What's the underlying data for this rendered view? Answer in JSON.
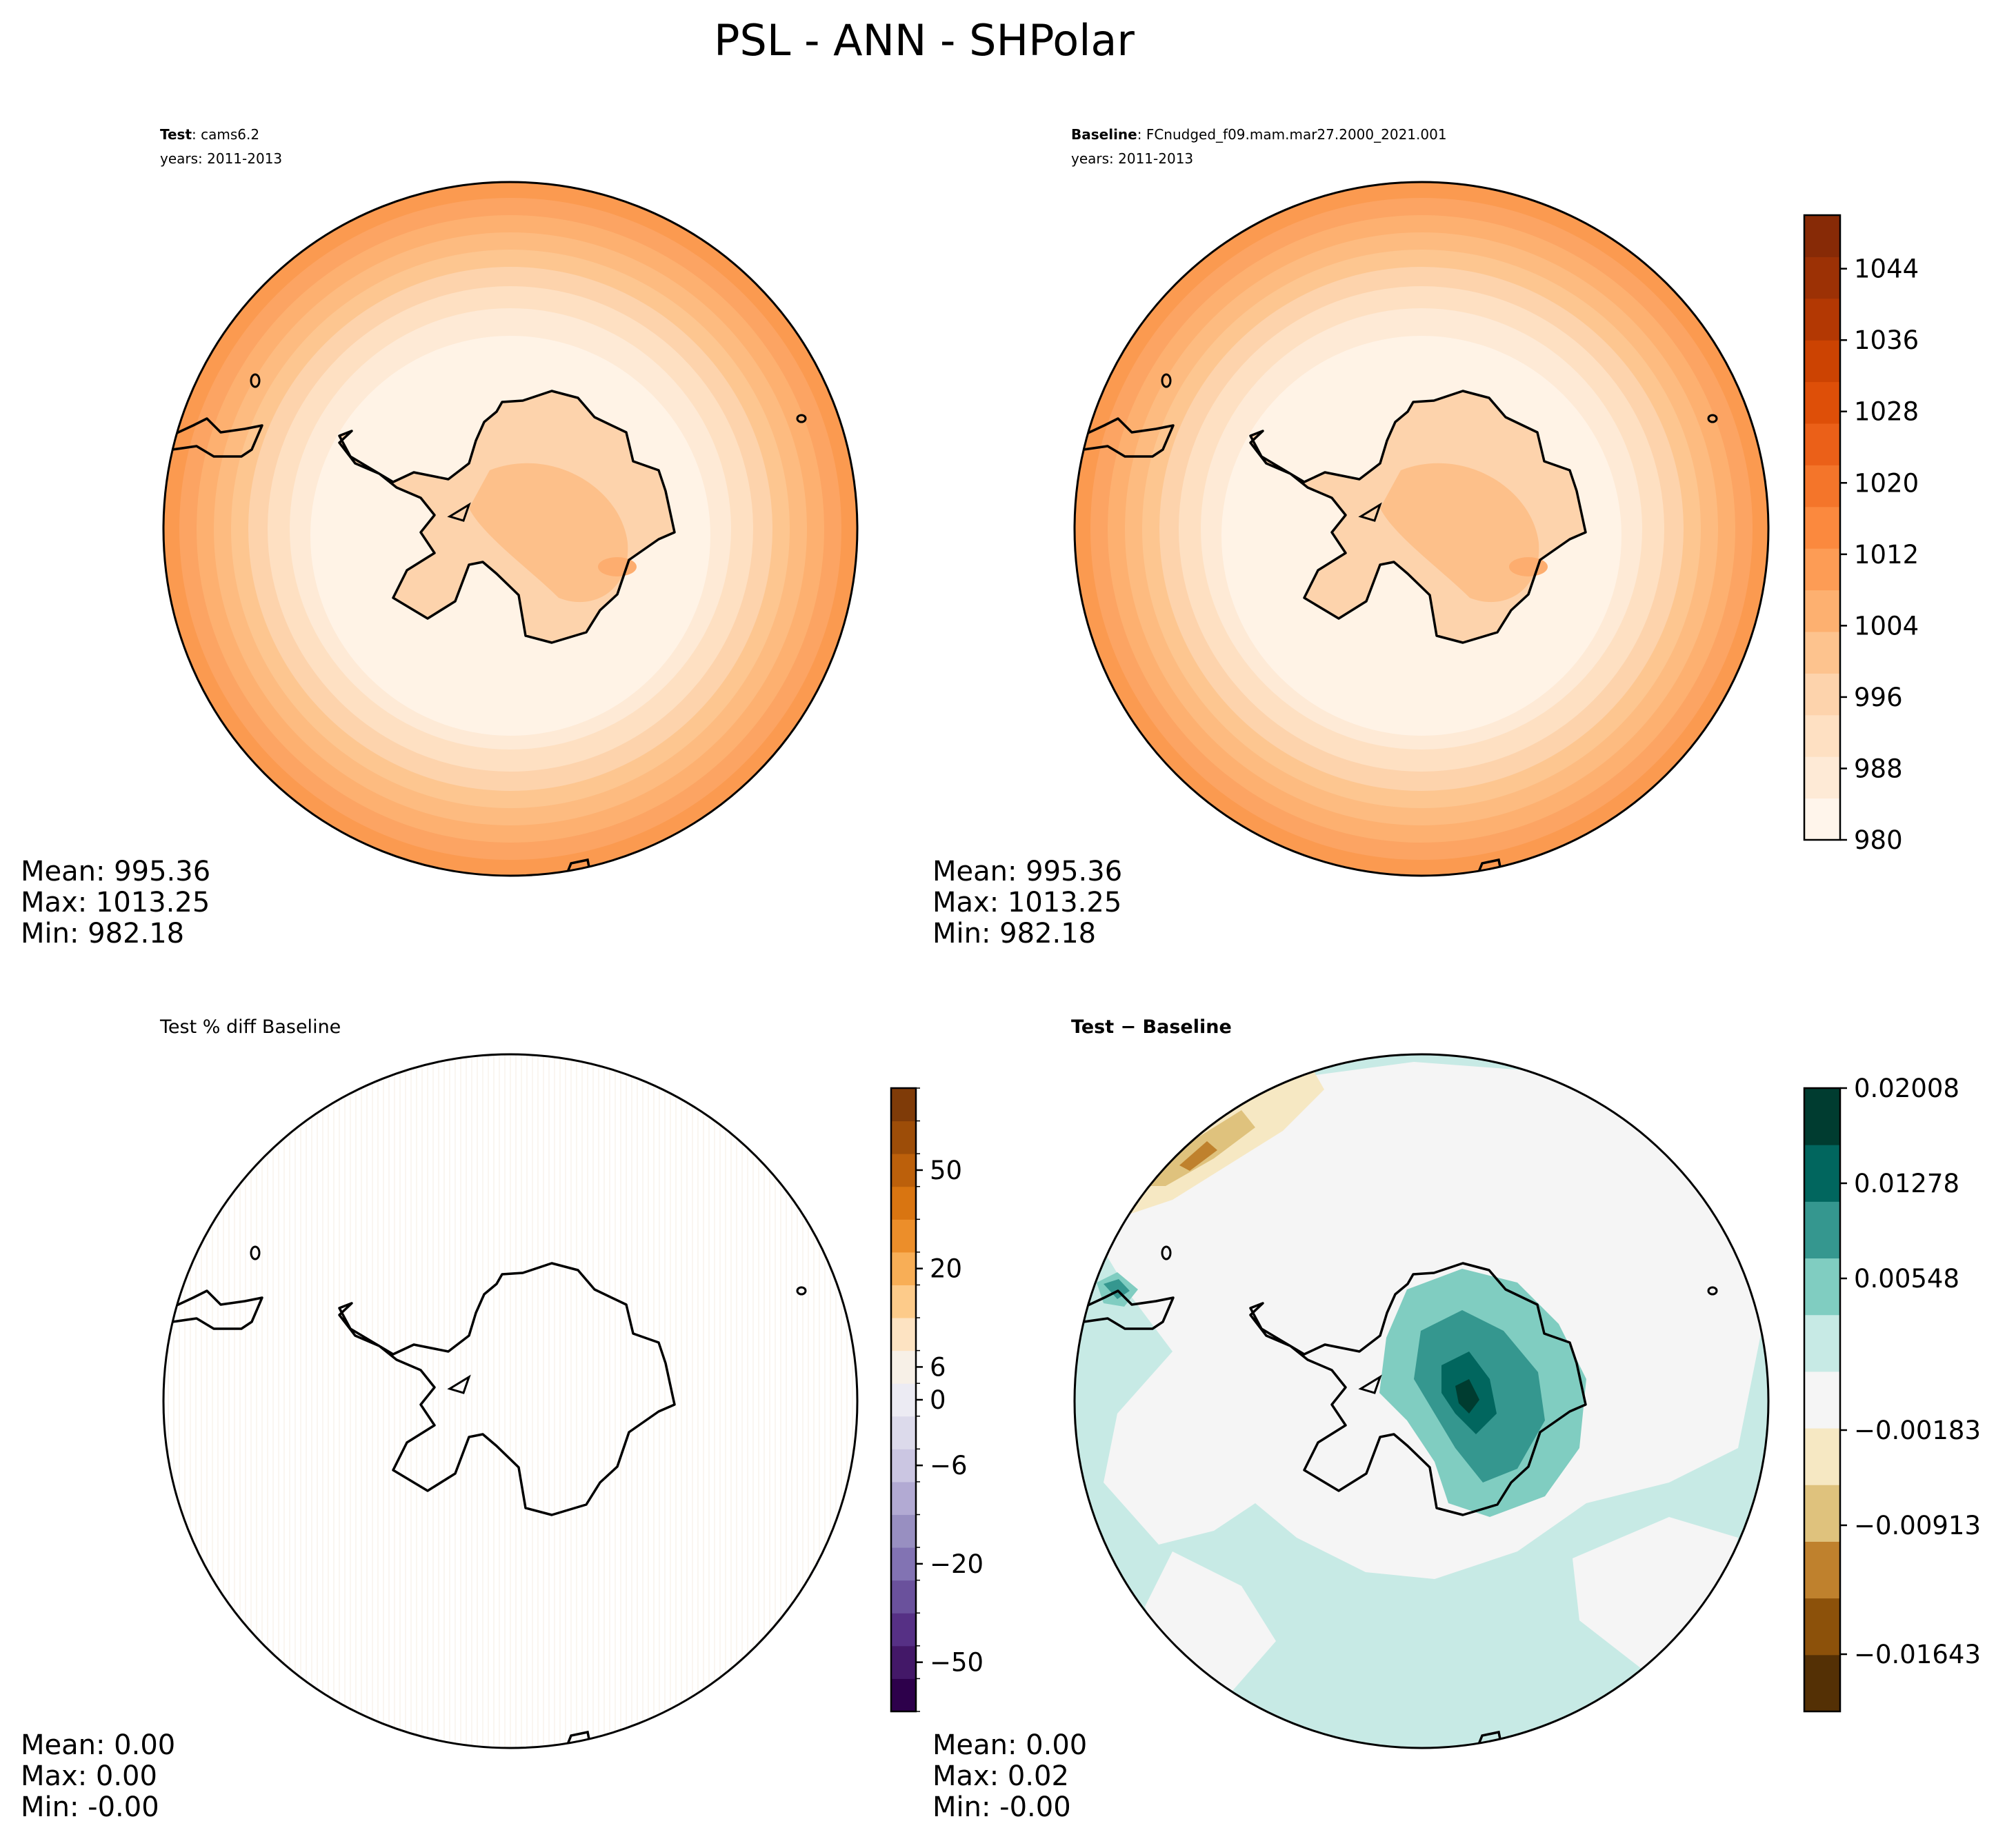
{
  "figure": {
    "title": "PSL - ANN - SHPolar"
  },
  "colormaps": {
    "oranges": [
      "#fff5eb",
      "#feead6",
      "#fee0c2",
      "#fdd3ac",
      "#fdc38e",
      "#fdb070",
      "#fd9c55",
      "#fb893e",
      "#f4752a",
      "#eb6018",
      "#de4f08",
      "#cc4302",
      "#b33803",
      "#9c3105",
      "#872a06"
    ],
    "puor": [
      "#2d004b",
      "#431868",
      "#563085",
      "#6a519c",
      "#8273b3",
      "#988fc1",
      "#b2aad3",
      "#cbc6e2",
      "#dcdaeb",
      "#ecebf3",
      "#f7f0e7",
      "#fde3c2",
      "#fdcb8a",
      "#f8ae56",
      "#ec8e2a",
      "#d97511",
      "#bc600b",
      "#9d4d08",
      "#7f3b08"
    ],
    "brbg": [
      "#543005",
      "#8c510a",
      "#bf812d",
      "#dfc27d",
      "#f6e8c3",
      "#f5f5f5",
      "#c7eae5",
      "#80cdc1",
      "#35978f",
      "#01665e",
      "#003c30"
    ]
  },
  "panels": [
    {
      "id": "test",
      "title_bold": "Test",
      "title_rest": ": cams6.2",
      "years": "years: 2011-2013",
      "stats": {
        "mean": "Mean: 995.36",
        "max": "Max: 1013.25",
        "min": "Min: 982.18"
      }
    },
    {
      "id": "baseline",
      "title_bold": "Baseline",
      "title_rest": ": FCnudged_f09.mam.mar27.2000_2021.001",
      "years": "years: 2011-2013",
      "stats": {
        "mean": "Mean: 995.36",
        "max": "Max: 1013.25",
        "min": "Min: 982.18"
      }
    },
    {
      "id": "pctdiff",
      "title": "Test % diff Baseline",
      "stats": {
        "mean": "Mean:  0.00",
        "max": "Max:  0.00",
        "min": "Min: -0.00"
      }
    },
    {
      "id": "diff",
      "title": "Test − Baseline",
      "stats": {
        "mean": "Mean:  0.00",
        "max": "Max:  0.02",
        "min": "Min: -0.00"
      }
    }
  ],
  "chart_data": [
    {
      "type": "heatmap",
      "panel": "Test",
      "projection": "south-polar-stereographic",
      "variable": "PSL",
      "season": "ANN",
      "region": "SHPolar",
      "value_range": [
        982.18,
        1013.25
      ],
      "mean": 995.36
    },
    {
      "type": "heatmap",
      "panel": "Baseline",
      "projection": "south-polar-stereographic",
      "value_range": [
        982.18,
        1013.25
      ],
      "mean": 995.36,
      "colorbar": {
        "range": [
          980,
          1050
        ],
        "ticks": [
          "980",
          "988",
          "996",
          "1004",
          "1012",
          "1020",
          "1028",
          "1036",
          "1044"
        ],
        "cmap": "oranges"
      }
    },
    {
      "type": "heatmap",
      "panel": "Test % diff Baseline",
      "projection": "south-polar-stereographic",
      "mean": 0.0,
      "max": 0.0,
      "min": -0.0,
      "colorbar": {
        "levels": 19,
        "ticks": [
          "50",
          "20",
          "6",
          "0",
          "−6",
          "−20",
          "−50"
        ],
        "cmap": "puor"
      }
    },
    {
      "type": "heatmap",
      "panel": "Test − Baseline",
      "projection": "south-polar-stereographic",
      "mean": 0.0,
      "max": 0.02,
      "min": -0.0,
      "colorbar": {
        "levels": 11,
        "ticks": [
          "0.02008",
          "0.01278",
          "0.00548",
          "−0.00183",
          "−0.00913",
          "−0.01643"
        ],
        "cmap": "brbg"
      }
    }
  ]
}
